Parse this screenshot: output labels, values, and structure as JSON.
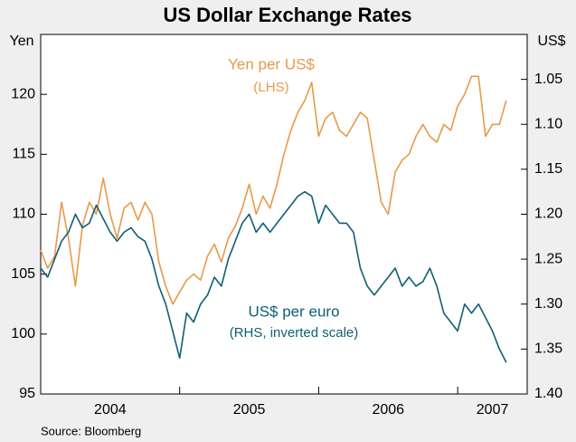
{
  "chart_data": {
    "type": "line",
    "title": "US Dollar Exchange Rates",
    "y_label": "Yen",
    "y2_label": "US$",
    "source": "Source: Bloomberg",
    "annotations": [
      "Yen per US$",
      "(LHS)",
      "US$ per euro",
      "(RHS, inverted scale)"
    ],
    "x": [
      2004.0,
      2004.05,
      2004.1,
      2004.15,
      2004.2,
      2004.25,
      2004.3,
      2004.35,
      2004.4,
      2004.45,
      2004.5,
      2004.55,
      2004.6,
      2004.65,
      2004.7,
      2004.75,
      2004.8,
      2004.85,
      2004.9,
      2004.95,
      2005.0,
      2005.05,
      2005.1,
      2005.15,
      2005.2,
      2005.25,
      2005.3,
      2005.35,
      2005.4,
      2005.45,
      2005.5,
      2005.55,
      2005.6,
      2005.65,
      2005.7,
      2005.75,
      2005.8,
      2005.85,
      2005.9,
      2005.95,
      2006.0,
      2006.05,
      2006.1,
      2006.15,
      2006.2,
      2006.25,
      2006.3,
      2006.35,
      2006.4,
      2006.45,
      2006.5,
      2006.55,
      2006.6,
      2006.65,
      2006.7,
      2006.75,
      2006.8,
      2006.85,
      2006.9,
      2006.95,
      2007.0,
      2007.05,
      2007.1,
      2007.15,
      2007.2,
      2007.25,
      2007.3,
      2007.35
    ],
    "xlim": [
      2004.0,
      2007.5
    ],
    "xticks": [
      2004,
      2005,
      2006,
      2007
    ],
    "ylim": [
      95,
      125
    ],
    "yticks": [
      95,
      100,
      105,
      110,
      115,
      120
    ],
    "y2lim": [
      1.4,
      1.0
    ],
    "y2ticks": [
      1.05,
      {
        "value": 1.1,
        "label": "1.10"
      },
      1.15,
      {
        "value": 1.2,
        "label": "1.20"
      },
      1.25,
      {
        "value": 1.3,
        "label": "1.30"
      },
      1.35,
      {
        "value": 1.4,
        "label": "1.40"
      }
    ],
    "series": [
      {
        "name": "Yen per US$",
        "color": "#e8994a",
        "axis": "y",
        "values": [
          107,
          105.5,
          106.5,
          111,
          108,
          104,
          109,
          111,
          110,
          113,
          110,
          108,
          110.5,
          111,
          109.5,
          111,
          110,
          106,
          104,
          102.5,
          103.5,
          104.5,
          105,
          104.5,
          106.5,
          107.5,
          106,
          108,
          109,
          110.5,
          112.5,
          110,
          111.5,
          110.5,
          112.5,
          115,
          117,
          118.5,
          119.5,
          121,
          116.5,
          118,
          118.5,
          117,
          116.5,
          117.5,
          118.5,
          118,
          114.5,
          111,
          110,
          113.5,
          114.5,
          115,
          116.5,
          117.5,
          116.5,
          116,
          117.5,
          117,
          119,
          120,
          121.5,
          121.5,
          116.5,
          117.5,
          117.5,
          119.5
        ]
      },
      {
        "name": "US$ per euro",
        "color": "#0e5f74",
        "axis": "y2",
        "values": [
          1.26,
          1.27,
          1.25,
          1.23,
          1.22,
          1.2,
          1.215,
          1.21,
          1.19,
          1.205,
          1.22,
          1.23,
          1.22,
          1.215,
          1.225,
          1.23,
          1.25,
          1.28,
          1.3,
          1.33,
          1.36,
          1.31,
          1.32,
          1.3,
          1.29,
          1.27,
          1.28,
          1.25,
          1.23,
          1.21,
          1.2,
          1.22,
          1.21,
          1.22,
          1.21,
          1.2,
          1.19,
          1.18,
          1.175,
          1.18,
          1.21,
          1.19,
          1.2,
          1.21,
          1.21,
          1.22,
          1.26,
          1.28,
          1.29,
          1.28,
          1.27,
          1.26,
          1.28,
          1.27,
          1.28,
          1.275,
          1.26,
          1.28,
          1.31,
          1.32,
          1.33,
          1.3,
          1.31,
          1.3,
          1.315,
          1.33,
          1.35,
          1.365
        ]
      }
    ]
  }
}
